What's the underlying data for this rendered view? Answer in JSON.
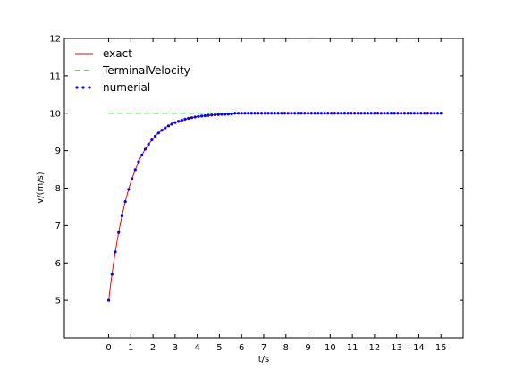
{
  "chart_data": {
    "type": "line",
    "title": "",
    "xlabel": "t/s",
    "ylabel": "v/(m/s)",
    "xlim": [
      -2,
      16
    ],
    "ylim": [
      4,
      12
    ],
    "xticks": [
      0,
      1,
      2,
      3,
      4,
      5,
      6,
      7,
      8,
      9,
      10,
      11,
      12,
      13,
      14,
      15
    ],
    "yticks": [
      5,
      6,
      7,
      8,
      9,
      10,
      11,
      12
    ],
    "grid": false,
    "legend_position": "top-left",
    "series": [
      {
        "name": "exact",
        "style": "solid-line",
        "color": "#ff0000",
        "x": [
          0,
          0.1,
          0.2,
          0.3,
          0.4,
          0.5,
          0.6,
          0.7,
          0.8,
          0.9,
          1.0,
          1.2,
          1.4,
          1.6,
          1.8,
          2.0,
          2.2,
          2.4,
          2.6,
          2.8,
          3.0,
          3.3,
          3.6,
          4.0,
          4.5,
          5.0,
          5.5,
          6.0,
          7.0,
          8.0,
          9.0,
          10.0,
          11.0,
          12.0,
          13.0,
          14.0,
          15.0
        ],
        "y": [
          5.0,
          5.48,
          5.91,
          6.3,
          6.65,
          6.97,
          7.26,
          7.52,
          7.75,
          7.97,
          8.16,
          8.49,
          8.77,
          8.99,
          9.17,
          9.32,
          9.45,
          9.55,
          9.63,
          9.7,
          9.75,
          9.81,
          9.86,
          9.91,
          9.94,
          9.97,
          9.98,
          9.99,
          10.0,
          10.0,
          10.0,
          10.0,
          10.0,
          10.0,
          10.0,
          10.0,
          10.0
        ]
      },
      {
        "name": "TerminalVelocity",
        "style": "dashed-line",
        "color": "#008000",
        "x": [
          0,
          15
        ],
        "y": [
          10,
          10
        ]
      },
      {
        "name": "numerial",
        "style": "dots",
        "color": "#0000ff",
        "x_start": 0,
        "x_end": 15,
        "x_step": 0.15,
        "y_formula": "10 - 5*exp(-t); level 10 from t >= 5.6",
        "points_shown": 101
      }
    ]
  }
}
